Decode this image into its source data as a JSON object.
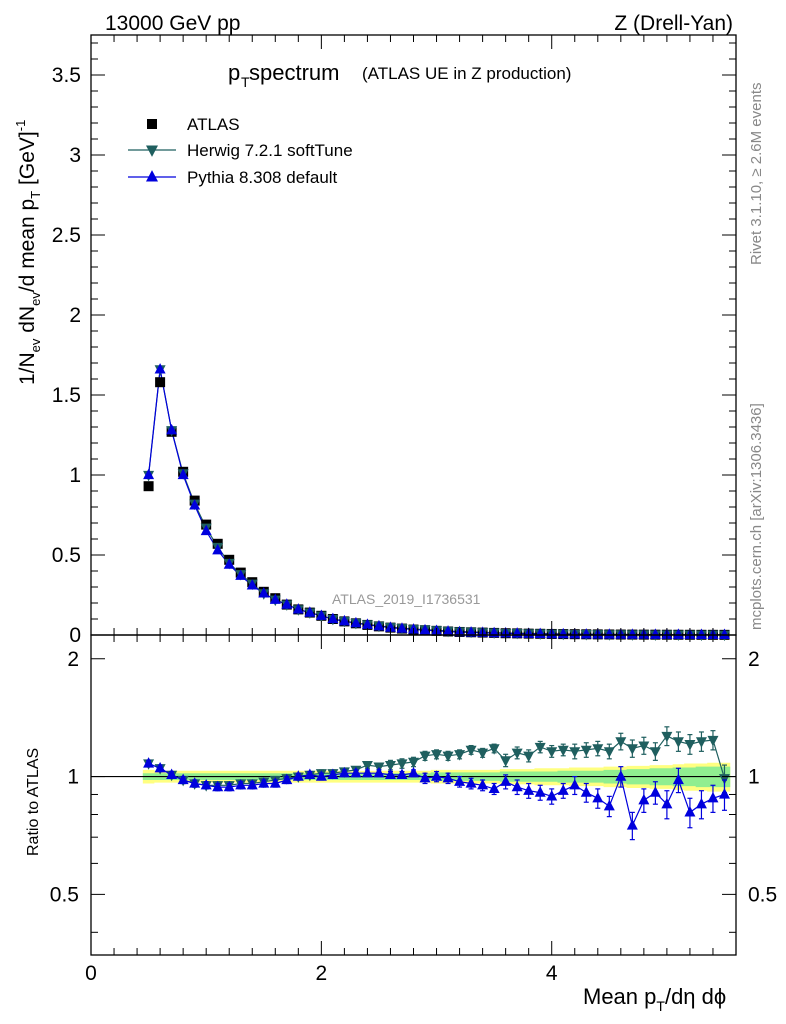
{
  "header": {
    "left": "13000 GeV pp",
    "right": "Z (Drell-Yan)"
  },
  "title": {
    "main_p": "p",
    "main_sub": "T",
    "main_rest": " spectrum",
    "paren": "(ATLAS UE in Z production)"
  },
  "watermark": "ATLAS_2019_I1736531",
  "side_text": {
    "top": "Rivet 3.1.10, ≥ 2.6M events",
    "bottom": "mcplots.cern.ch [arXiv:1306.3436]"
  },
  "axes": {
    "xlabel": "Mean p_T/dη dϕ",
    "ylabel_main": "1/N_ev dN_ev/d mean p_T [GeV]^-1",
    "ylabel_ratio": "Ratio to ATLAS",
    "x_ticks": [
      "0",
      "2",
      "4"
    ],
    "y_ticks_main": [
      "0",
      "0.5",
      "1",
      "1.5",
      "2",
      "2.5",
      "3",
      "3.5"
    ],
    "y_ticks_ratio": [
      "0.5",
      "1",
      "2"
    ]
  },
  "legend": [
    {
      "label": "ATLAS",
      "color": "#000000",
      "marker": "square"
    },
    {
      "label": "Herwig 7.2.1 softTune",
      "color": "#1f5f5f",
      "marker": "triangle-down"
    },
    {
      "label": "Pythia 8.308 default",
      "color": "#0000dd",
      "marker": "triangle-up"
    }
  ],
  "chart_data": [
    {
      "type": "scatter",
      "panel": "main",
      "xlim": [
        0,
        5.6
      ],
      "ylim": [
        0,
        3.75
      ],
      "x": [
        0.5,
        0.6,
        0.7,
        0.8,
        0.9,
        1.0,
        1.1,
        1.2,
        1.3,
        1.4,
        1.5,
        1.6,
        1.7,
        1.8,
        1.9,
        2.0,
        2.1,
        2.2,
        2.3,
        2.4,
        2.5,
        2.6,
        2.7,
        2.8,
        2.9,
        3.0,
        3.1,
        3.2,
        3.3,
        3.4,
        3.5,
        3.6,
        3.7,
        3.8,
        3.9,
        4.0,
        4.1,
        4.2,
        4.3,
        4.4,
        4.5,
        4.6,
        4.7,
        4.8,
        4.9,
        5.0,
        5.1,
        5.2,
        5.3,
        5.4,
        5.5
      ],
      "series": [
        {
          "name": "ATLAS",
          "values": [
            0.93,
            1.58,
            1.27,
            1.02,
            0.84,
            0.69,
            0.57,
            0.47,
            0.39,
            0.33,
            0.27,
            0.23,
            0.19,
            0.16,
            0.14,
            0.12,
            0.1,
            0.085,
            0.073,
            0.063,
            0.054,
            0.046,
            0.04,
            0.034,
            0.03,
            0.026,
            0.022,
            0.019,
            0.017,
            0.015,
            0.013,
            0.011,
            0.01,
            0.0085,
            0.0075,
            0.0065,
            0.0057,
            0.005,
            0.0044,
            0.0038,
            0.0033,
            0.0029,
            0.0026,
            0.0023,
            0.002,
            0.0018,
            0.0016,
            0.0014,
            0.0012,
            0.0011,
            0.001
          ]
        },
        {
          "name": "Herwig 7.2.1 softTune",
          "values": [
            1.0,
            1.66,
            1.28,
            1.01,
            0.82,
            0.67,
            0.55,
            0.45,
            0.38,
            0.32,
            0.26,
            0.22,
            0.19,
            0.16,
            0.14,
            0.12,
            0.1,
            0.087,
            0.075,
            0.066,
            0.057,
            0.049,
            0.043,
            0.037,
            0.034,
            0.03,
            0.025,
            0.022,
            0.02,
            0.017,
            0.015,
            0.012,
            0.012,
            0.01,
            0.009,
            0.0076,
            0.0067,
            0.0058,
            0.0051,
            0.0045,
            0.0039,
            0.0036,
            0.0031,
            0.0028,
            0.0023,
            0.0023,
            0.002,
            0.0017,
            0.0015,
            0.0014,
            0.001
          ]
        },
        {
          "name": "Pythia 8.308 default",
          "values": [
            1.0,
            1.66,
            1.28,
            1.0,
            0.81,
            0.65,
            0.53,
            0.44,
            0.37,
            0.31,
            0.26,
            0.22,
            0.19,
            0.16,
            0.14,
            0.12,
            0.1,
            0.086,
            0.074,
            0.064,
            0.055,
            0.046,
            0.04,
            0.035,
            0.03,
            0.026,
            0.022,
            0.018,
            0.016,
            0.014,
            0.012,
            0.011,
            0.0093,
            0.0078,
            0.0068,
            0.0058,
            0.0051,
            0.0044,
            0.0038,
            0.0032,
            0.0028,
            0.0025,
            0.002,
            0.002,
            0.0018,
            0.0015,
            0.0015,
            0.0012,
            0.001,
            0.0009,
            0.0009
          ]
        }
      ]
    },
    {
      "type": "scatter",
      "panel": "ratio",
      "xlim": [
        0,
        5.6
      ],
      "ylim": [
        0.35,
        2.3
      ],
      "y_scale": "log",
      "x": [
        0.5,
        0.6,
        0.7,
        0.8,
        0.9,
        1.0,
        1.1,
        1.2,
        1.3,
        1.4,
        1.5,
        1.6,
        1.7,
        1.8,
        1.9,
        2.0,
        2.1,
        2.2,
        2.3,
        2.4,
        2.5,
        2.6,
        2.7,
        2.8,
        2.9,
        3.0,
        3.1,
        3.2,
        3.3,
        3.4,
        3.5,
        3.6,
        3.7,
        3.8,
        3.9,
        4.0,
        4.1,
        4.2,
        4.3,
        4.4,
        4.5,
        4.6,
        4.7,
        4.8,
        4.9,
        5.0,
        5.1,
        5.2,
        5.3,
        5.4,
        5.5
      ],
      "series": [
        {
          "name": "Herwig 7.2.1 softTune",
          "values": [
            1.08,
            1.05,
            1.01,
            0.98,
            0.96,
            0.95,
            0.95,
            0.95,
            0.96,
            0.96,
            0.97,
            0.98,
            0.99,
            1.0,
            1.01,
            1.02,
            1.02,
            1.03,
            1.04,
            1.07,
            1.06,
            1.07,
            1.08,
            1.09,
            1.13,
            1.14,
            1.13,
            1.14,
            1.17,
            1.15,
            1.18,
            1.1,
            1.15,
            1.13,
            1.19,
            1.16,
            1.17,
            1.16,
            1.17,
            1.18,
            1.16,
            1.23,
            1.18,
            1.2,
            1.16,
            1.27,
            1.23,
            1.21,
            1.23,
            1.24,
            0.99
          ],
          "errors": [
            0.02,
            0.02,
            0.02,
            0.02,
            0.02,
            0.02,
            0.02,
            0.02,
            0.02,
            0.02,
            0.02,
            0.02,
            0.02,
            0.02,
            0.02,
            0.02,
            0.02,
            0.02,
            0.02,
            0.02,
            0.02,
            0.03,
            0.03,
            0.03,
            0.03,
            0.03,
            0.03,
            0.03,
            0.03,
            0.03,
            0.03,
            0.04,
            0.04,
            0.04,
            0.04,
            0.04,
            0.04,
            0.05,
            0.05,
            0.05,
            0.05,
            0.06,
            0.06,
            0.06,
            0.06,
            0.07,
            0.07,
            0.07,
            0.07,
            0.07,
            0.08
          ]
        },
        {
          "name": "Pythia 8.308 default",
          "values": [
            1.08,
            1.05,
            1.01,
            0.98,
            0.96,
            0.95,
            0.94,
            0.94,
            0.95,
            0.95,
            0.96,
            0.96,
            0.98,
            1.0,
            1.01,
            1.0,
            1.01,
            1.02,
            1.02,
            1.02,
            1.02,
            1.01,
            1.01,
            1.02,
            0.99,
            1.0,
            0.99,
            0.97,
            0.96,
            0.95,
            0.93,
            0.97,
            0.94,
            0.92,
            0.91,
            0.89,
            0.92,
            0.95,
            0.91,
            0.88,
            0.84,
            1.0,
            0.75,
            0.87,
            0.91,
            0.85,
            0.98,
            0.81,
            0.85,
            0.88,
            0.9
          ],
          "errors": [
            0.02,
            0.02,
            0.02,
            0.02,
            0.02,
            0.02,
            0.02,
            0.02,
            0.02,
            0.02,
            0.02,
            0.02,
            0.02,
            0.02,
            0.02,
            0.02,
            0.02,
            0.02,
            0.02,
            0.02,
            0.02,
            0.02,
            0.02,
            0.02,
            0.03,
            0.03,
            0.03,
            0.03,
            0.03,
            0.03,
            0.03,
            0.04,
            0.04,
            0.04,
            0.04,
            0.04,
            0.04,
            0.05,
            0.05,
            0.05,
            0.05,
            0.06,
            0.06,
            0.06,
            0.06,
            0.07,
            0.07,
            0.07,
            0.07,
            0.07,
            0.08
          ]
        }
      ],
      "reference_band": {
        "line": 1.0,
        "green_halfwidth": [
          0.02,
          0.02,
          0.02,
          0.02,
          0.02,
          0.02,
          0.02,
          0.02,
          0.02,
          0.02,
          0.02,
          0.02,
          0.02,
          0.02,
          0.02,
          0.02,
          0.02,
          0.02,
          0.02,
          0.02,
          0.02,
          0.02,
          0.02,
          0.02,
          0.02,
          0.025,
          0.025,
          0.025,
          0.025,
          0.025,
          0.025,
          0.03,
          0.03,
          0.03,
          0.03,
          0.03,
          0.035,
          0.035,
          0.035,
          0.035,
          0.04,
          0.04,
          0.045,
          0.045,
          0.05,
          0.05,
          0.055,
          0.055,
          0.06,
          0.06,
          0.06
        ],
        "yellow_halfwidth": [
          0.04,
          0.035,
          0.035,
          0.035,
          0.035,
          0.035,
          0.035,
          0.035,
          0.035,
          0.035,
          0.035,
          0.035,
          0.035,
          0.035,
          0.035,
          0.035,
          0.035,
          0.035,
          0.035,
          0.035,
          0.035,
          0.035,
          0.035,
          0.035,
          0.035,
          0.04,
          0.04,
          0.04,
          0.04,
          0.04,
          0.04,
          0.045,
          0.045,
          0.045,
          0.05,
          0.05,
          0.05,
          0.055,
          0.055,
          0.055,
          0.06,
          0.06,
          0.065,
          0.065,
          0.07,
          0.07,
          0.075,
          0.08,
          0.08,
          0.085,
          0.085
        ],
        "green": "#90ee90",
        "yellow": "#ffff80"
      }
    }
  ]
}
